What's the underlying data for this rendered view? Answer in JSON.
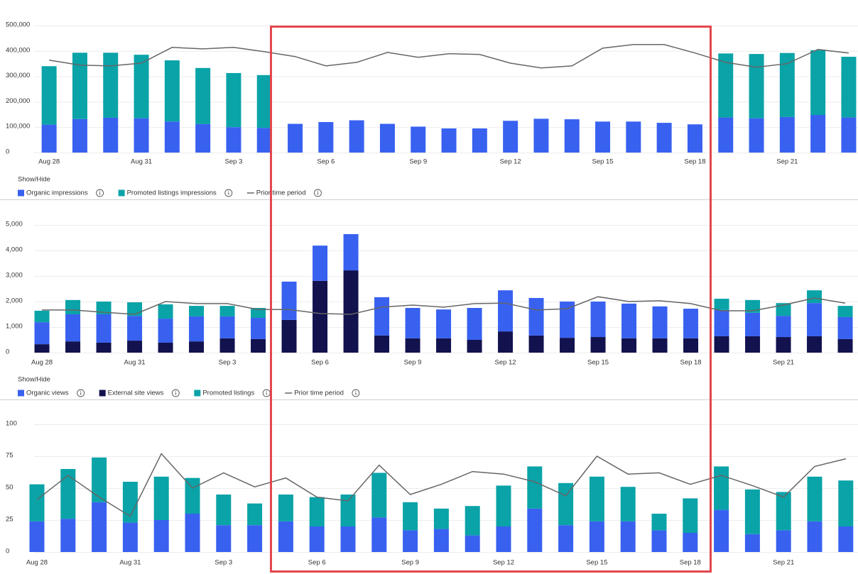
{
  "chart_data": [
    {
      "type": "bar",
      "stacked": true,
      "stack_order": [
        0,
        1
      ],
      "categories": [
        "Aug 28",
        null,
        null,
        "Aug 31",
        null,
        null,
        "Sep 3",
        null,
        null,
        "Sep 6",
        null,
        null,
        "Sep 9",
        null,
        null,
        "Sep 12",
        null,
        null,
        "Sep 15",
        null,
        null,
        "Sep 18",
        null,
        null,
        "Sep 21",
        null,
        null
      ],
      "ylim": [
        0,
        500000
      ],
      "yticks": [
        0,
        {
          "value": 100000,
          "label": "100,000"
        },
        {
          "value": 200000,
          "label": "200,000"
        },
        {
          "value": 300000,
          "label": "300,000"
        },
        {
          "value": 400000,
          "label": "400,000"
        },
        {
          "value": 500000,
          "label": "500,000"
        }
      ],
      "grid": true,
      "legend_title": "Show/Hide",
      "series": [
        {
          "name": "Organic impressions",
          "type": "bar",
          "color": "#3861f0",
          "values": [
            110000,
            132000,
            137000,
            135000,
            122000,
            112000,
            100000,
            97000,
            113000,
            120000,
            127000,
            113000,
            102000,
            95000,
            95000,
            125000,
            133000,
            131000,
            122000,
            122000,
            117000,
            111000,
            138000,
            135000,
            140000,
            148000,
            138000
          ]
        },
        {
          "name": "Promoted listings impressions",
          "type": "bar",
          "color": "#0aa3a8",
          "values": [
            230000,
            261000,
            256000,
            250000,
            241000,
            221000,
            213000,
            208000,
            null,
            null,
            null,
            null,
            null,
            null,
            null,
            null,
            null,
            null,
            null,
            null,
            null,
            null,
            252000,
            253000,
            252000,
            255000,
            239000
          ]
        },
        {
          "name": "Prior time period",
          "type": "line",
          "color": "#666666",
          "values": [
            364000,
            344000,
            341000,
            352000,
            414000,
            408000,
            414000,
            397000,
            378000,
            341000,
            355000,
            394000,
            375000,
            389000,
            386000,
            352000,
            333000,
            341000,
            411000,
            425000,
            425000,
            392000,
            355000,
            336000,
            350000,
            406000,
            392000
          ]
        }
      ]
    },
    {
      "type": "bar",
      "stacked": true,
      "stack_order": [
        1,
        0,
        2
      ],
      "categories": [
        "Aug 28",
        null,
        null,
        "Aug 31",
        null,
        null,
        "Sep 3",
        null,
        null,
        "Sep 6",
        null,
        null,
        "Sep 9",
        null,
        null,
        "Sep 12",
        null,
        null,
        "Sep 15",
        null,
        null,
        "Sep 18",
        null,
        null,
        "Sep 21",
        null,
        null
      ],
      "ylim": [
        0,
        5000
      ],
      "yticks": [
        0,
        {
          "value": 1000,
          "label": "1,000"
        },
        {
          "value": 2000,
          "label": "2,000"
        },
        {
          "value": 3000,
          "label": "3,000"
        },
        {
          "value": 4000,
          "label": "4,000"
        },
        {
          "value": 5000,
          "label": "5,000"
        }
      ],
      "grid": true,
      "legend_title": "Show/Hide",
      "series": [
        {
          "name": "Organic views",
          "type": "bar",
          "color": "#3861f0",
          "values": [
            860,
            1060,
            1110,
            970,
            940,
            980,
            860,
            830,
            1500,
            1380,
            1420,
            1500,
            1190,
            1130,
            1250,
            1610,
            1470,
            1420,
            1390,
            1360,
            1250,
            1160,
            1030,
            920,
            830,
            1300,
            860
          ]
        },
        {
          "name": "External site views",
          "type": "bar",
          "color": "#12124f",
          "values": [
            330,
            440,
            390,
            470,
            390,
            440,
            560,
            530,
            1280,
            2810,
            3220,
            670,
            560,
            560,
            500,
            830,
            670,
            580,
            610,
            560,
            560,
            560,
            640,
            640,
            610,
            640,
            530
          ]
        },
        {
          "name": "Promoted listings",
          "type": "bar",
          "color": "#0aa3a8",
          "values": [
            450,
            560,
            500,
            530,
            560,
            410,
            410,
            390,
            null,
            null,
            null,
            null,
            null,
            null,
            null,
            null,
            null,
            null,
            null,
            null,
            null,
            null,
            440,
            500,
            500,
            500,
            440
          ]
        },
        {
          "name": "Prior time period",
          "type": "line",
          "color": "#666666",
          "values": [
            1670,
            1670,
            1580,
            1500,
            2000,
            1920,
            1920,
            1690,
            1690,
            1530,
            1500,
            1780,
            1860,
            1780,
            1920,
            1940,
            1670,
            1720,
            2190,
            2000,
            2030,
            1920,
            1640,
            1640,
            1860,
            2140,
            1940
          ]
        }
      ]
    },
    {
      "type": "bar",
      "stacked": true,
      "stack_order": [
        0,
        1
      ],
      "categories": [
        "Aug 28",
        null,
        null,
        "Aug 31",
        null,
        null,
        "Sep 3",
        null,
        null,
        "Sep 6",
        null,
        null,
        "Sep 9",
        null,
        null,
        "Sep 12",
        null,
        null,
        "Sep 15",
        null,
        null,
        "Sep 18",
        null,
        null,
        "Sep 21",
        null,
        null
      ],
      "ylim": [
        0,
        100
      ],
      "yticks": [
        0,
        25,
        50,
        75,
        100
      ],
      "grid": true,
      "series": [
        {
          "type": "bar",
          "color": "#3861f0",
          "values": [
            24,
            26,
            39,
            23,
            25,
            30,
            21,
            21,
            24,
            20,
            20,
            27,
            17,
            18,
            13,
            20,
            34,
            21,
            24,
            24,
            17,
            15,
            33,
            14,
            17,
            24,
            20
          ]
        },
        {
          "type": "bar",
          "color": "#0aa3a8",
          "values": [
            29,
            39,
            35,
            32,
            34,
            28,
            24,
            17,
            21,
            23,
            25,
            35,
            22,
            16,
            23,
            32,
            33,
            33,
            35,
            27,
            13,
            27,
            34,
            35,
            30,
            35,
            36
          ]
        },
        {
          "type": "line",
          "color": "#666666",
          "values": [
            41,
            60,
            43,
            28,
            77,
            50,
            62,
            51,
            58,
            43,
            40,
            68,
            45,
            53,
            63,
            61,
            55,
            44,
            75,
            61,
            62,
            53,
            60,
            52,
            43,
            67,
            73
          ]
        }
      ]
    }
  ]
}
